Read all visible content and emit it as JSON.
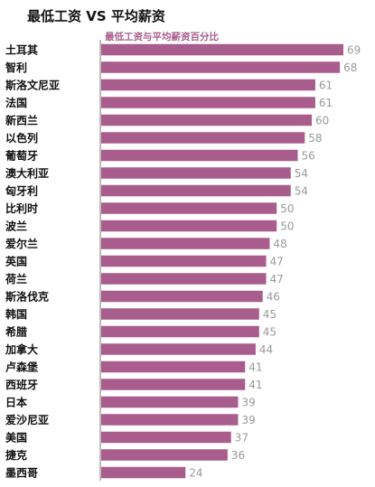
{
  "chart_data": {
    "type": "bar",
    "orientation": "horizontal",
    "title": "最低工资 VS 平均薪资",
    "subtitle": "最低工资与平均薪资百分比",
    "categories": [
      "土耳其",
      "智利",
      "斯洛文尼亚",
      "法国",
      "新西兰",
      "以色列",
      "葡萄牙",
      "澳大利亚",
      "匈牙利",
      "比利时",
      "波兰",
      "爱尔兰",
      "英国",
      "荷兰",
      "斯洛伐克",
      "韩国",
      "希腊",
      "加拿大",
      "卢森堡",
      "西班牙",
      "日本",
      "爱沙尼亚",
      "美国",
      "捷克",
      "墨西哥"
    ],
    "values": [
      69,
      68,
      61,
      61,
      60,
      58,
      56,
      54,
      54,
      50,
      50,
      48,
      47,
      47,
      46,
      45,
      45,
      44,
      41,
      41,
      39,
      39,
      37,
      36,
      24
    ],
    "xlim": [
      0,
      69
    ],
    "grid": false,
    "bar_color": "#a85d8c",
    "label_color": "#999999",
    "category_color": "#111111"
  }
}
